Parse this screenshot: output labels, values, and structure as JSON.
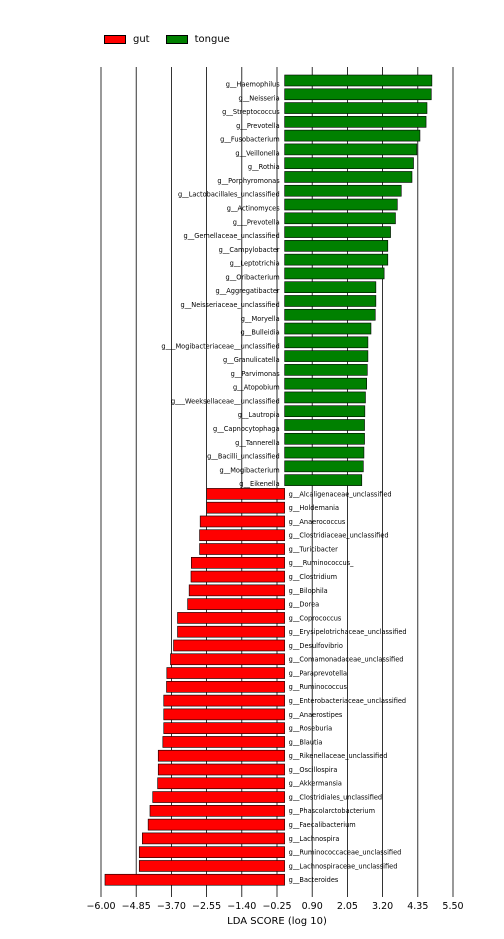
{
  "chart_data": {
    "type": "bar",
    "orientation": "horizontal",
    "title": "",
    "xlabel": "LDA SCORE (log 10)",
    "xlim": [
      -6.0,
      5.5
    ],
    "xticks": [
      -6.0,
      -4.85,
      -3.7,
      -2.55,
      -1.4,
      -0.25,
      0.9,
      2.05,
      3.2,
      4.35,
      5.5
    ],
    "xtick_labels": [
      "−6.00",
      "−4.85",
      "−3.70",
      "−2.55",
      "−1.40",
      "−0.25",
      "0.90",
      "2.05",
      "3.20",
      "4.35",
      "5.50"
    ],
    "grid": "vertical",
    "legend_position": "top-left",
    "colors": {
      "gut": "#ff0000",
      "tongue": "#008000"
    },
    "series": [
      {
        "name": "tongue",
        "categories": [
          "g__Haemophilus",
          "g__Neisseria",
          "g__Streptococcus",
          "g__Prevotella",
          "g__Fusobacterium",
          "g__Veillonella",
          "g__Rothia",
          "g__Porphyromonas",
          "g__Lactobacillales_unclassified",
          "g__Actinomyces",
          "g___Prevotella",
          "g__Gemellaceae_unclassified",
          "g__Campylobacter",
          "g__Leptotrichia",
          "g__Oribacterium",
          "g__Aggregatibacter",
          "g__Neisseriaceae_unclassified",
          "g__Moryella",
          "g__Bulleidia",
          "g___Mogibacteriaceae__unclassified",
          "g__Granulicatella",
          "g__Parvimonas",
          "g__Atopobium",
          "g___Weeksellaceae__unclassified",
          "g__Lautropia",
          "g__Capnocytophaga",
          "g__Tannerella",
          "g__Bacilli_unclassified",
          "g__Mogibacterium",
          "g__Eikenella"
        ],
        "values": [
          4.81,
          4.79,
          4.65,
          4.62,
          4.42,
          4.32,
          4.21,
          4.16,
          3.81,
          3.68,
          3.62,
          3.46,
          3.37,
          3.37,
          3.25,
          2.98,
          2.98,
          2.96,
          2.82,
          2.72,
          2.72,
          2.7,
          2.68,
          2.64,
          2.62,
          2.61,
          2.61,
          2.59,
          2.57,
          2.52
        ]
      },
      {
        "name": "gut",
        "categories": [
          "g__Alcaligenaceae_unclassified",
          "g__Holdemania",
          "g__Anaerococcus",
          "g__Clostridiaceae_unclassified",
          "g__Turicibacter",
          "g___Ruminococcus_",
          "g__Clostridium",
          "g__Bilophila",
          "g__Dorea",
          "g__Coprococcus",
          "g__Erysipelotrichaceae_unclassified",
          "g__Desulfovibrio",
          "g__Comamonadaceae_unclassified",
          "g__Paraprevotella",
          "g__Ruminococcus",
          "g__Enterobacteriaceae_unclassified",
          "g__Anaerostipes",
          "g__Roseburia",
          "g__Blautia",
          "g__Rikenellaceae_unclassified",
          "g__Oscillospira",
          "g__Akkermansia",
          "g__Clostridiales_unclassified",
          "g__Phascolarctobacterium",
          "g__Faecalibacterium",
          "g__Lachnospira",
          "g__Ruminococcaceae_unclassified",
          "g__Lachnospiraceae_unclassified",
          "g__Bacteroides"
        ],
        "values": [
          -2.55,
          -2.55,
          -2.76,
          -2.78,
          -2.78,
          -3.05,
          -3.06,
          -3.12,
          -3.17,
          -3.5,
          -3.5,
          -3.63,
          -3.73,
          -3.85,
          -3.86,
          -3.95,
          -3.95,
          -3.95,
          -3.98,
          -4.13,
          -4.13,
          -4.15,
          -4.31,
          -4.4,
          -4.46,
          -4.65,
          -4.75,
          -4.75,
          -5.87
        ]
      }
    ]
  }
}
